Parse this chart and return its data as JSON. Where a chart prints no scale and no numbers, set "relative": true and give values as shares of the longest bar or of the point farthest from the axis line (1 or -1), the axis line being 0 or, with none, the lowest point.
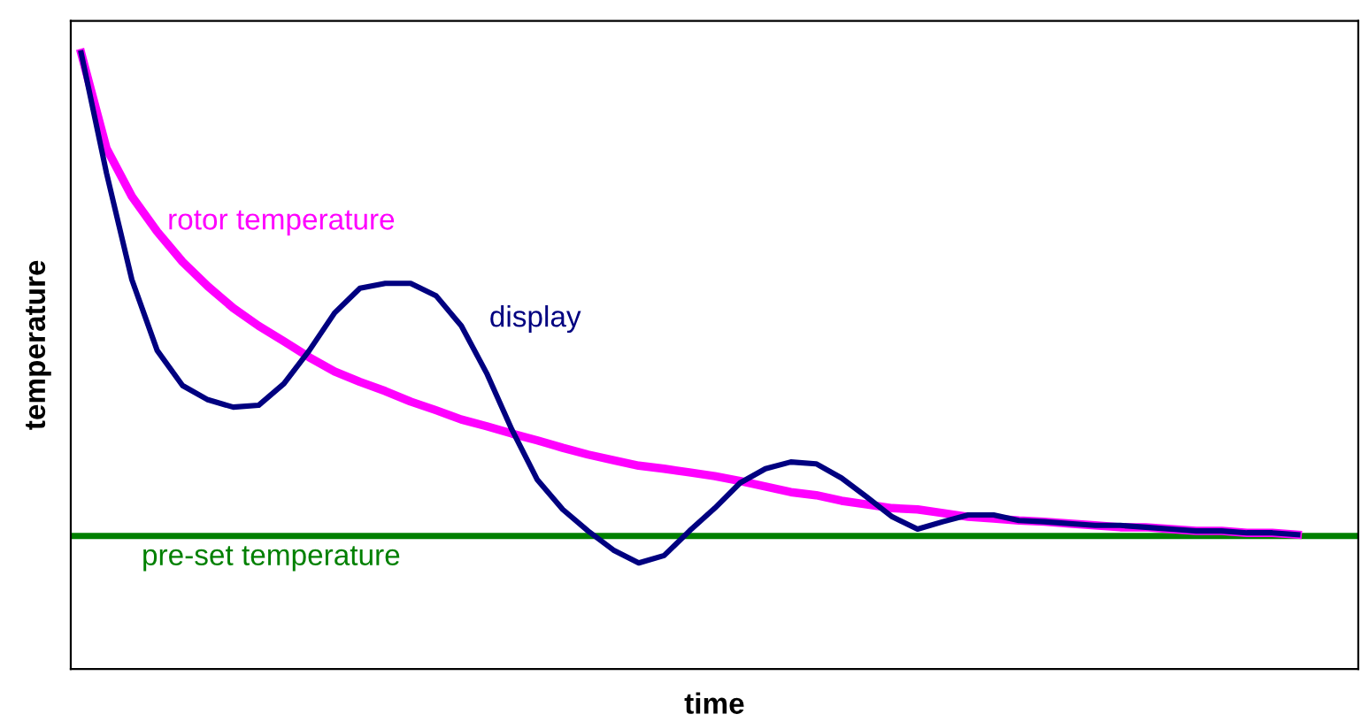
{
  "chart_data": {
    "type": "line",
    "relative": true,
    "xlabel": "time",
    "ylabel": "temperature",
    "legend": false,
    "marker": "none",
    "line_style": "solid",
    "categories": [
      null,
      null,
      null,
      null,
      null,
      null,
      null,
      null,
      null,
      null,
      null,
      null,
      null,
      null,
      null,
      null,
      null,
      null,
      null,
      null,
      null,
      null,
      null,
      null,
      null,
      null,
      null,
      null,
      null,
      null,
      null,
      null,
      null,
      null,
      null,
      null,
      null,
      null,
      null,
      null,
      null,
      null,
      null,
      null,
      null,
      null,
      null,
      null,
      null
    ],
    "series": [
      {
        "name": "display",
        "color": "#000080",
        "values": [
          1.0,
          0.805,
          0.632,
          0.517,
          0.46,
          0.437,
          0.425,
          0.428,
          0.463,
          0.517,
          0.578,
          0.618,
          0.626,
          0.626,
          0.606,
          0.557,
          0.48,
          0.388,
          0.307,
          0.259,
          0.224,
          0.193,
          0.172,
          0.184,
          0.224,
          0.261,
          0.302,
          0.325,
          0.336,
          0.333,
          0.31,
          0.279,
          0.247,
          0.227,
          0.239,
          0.25,
          0.25,
          0.241,
          0.239,
          0.236,
          0.233,
          0.233,
          0.23,
          0.227,
          0.224,
          0.224,
          0.221,
          0.221,
          0.218
        ]
      },
      {
        "name": "rotor temperature",
        "color": "#ff00ff",
        "values": [
          1.0,
          0.845,
          0.767,
          0.71,
          0.661,
          0.621,
          0.586,
          0.557,
          0.532,
          0.506,
          0.483,
          0.466,
          0.451,
          0.434,
          0.42,
          0.405,
          0.394,
          0.382,
          0.371,
          0.359,
          0.348,
          0.339,
          0.33,
          0.325,
          0.319,
          0.313,
          0.305,
          0.296,
          0.287,
          0.282,
          0.273,
          0.267,
          0.261,
          0.259,
          0.253,
          0.247,
          0.244,
          0.241,
          0.239,
          0.236,
          0.233,
          0.23,
          0.23,
          0.227,
          0.224,
          0.224,
          0.221,
          0.221,
          0.218
        ]
      }
    ],
    "ref_lines": [
      {
        "axis": "y",
        "value": 0.216,
        "label": "pre-set temperature",
        "color": "#008000",
        "line_style": "solid"
      }
    ]
  }
}
